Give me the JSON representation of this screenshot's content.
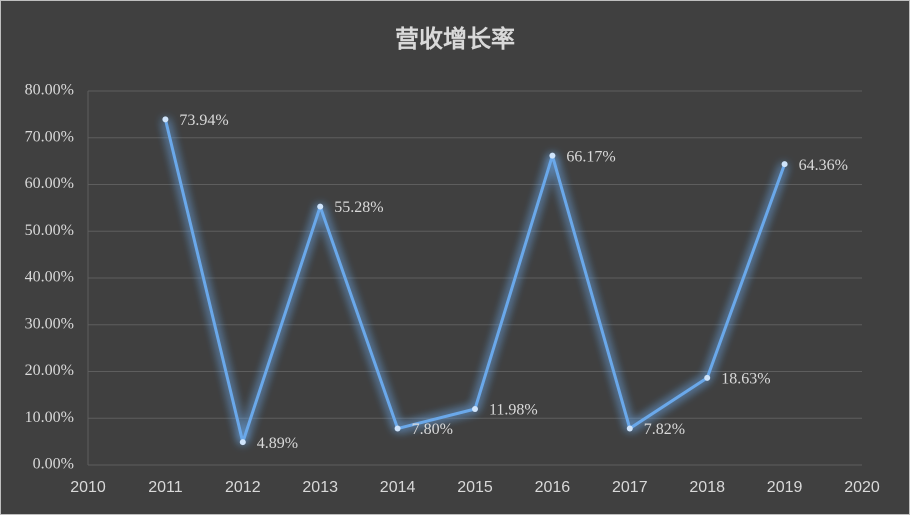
{
  "chart_data": {
    "type": "line",
    "title": "营收增长率",
    "x": [
      2011,
      2012,
      2013,
      2014,
      2015,
      2016,
      2017,
      2018,
      2019
    ],
    "series": [
      {
        "color": "#6aa8ea",
        "values": [
          73.94,
          4.89,
          55.28,
          7.8,
          11.98,
          66.17,
          7.82,
          18.63,
          64.36
        ],
        "value_labels": [
          "73.94%",
          "4.89%",
          "55.28%",
          "7.80%",
          "11.98%",
          "66.17%",
          "7.82%",
          "18.63%",
          "64.36%"
        ]
      }
    ],
    "xlim": [
      2010,
      2020
    ],
    "xticks": [
      2010,
      2011,
      2012,
      2013,
      2014,
      2015,
      2016,
      2017,
      2018,
      2019,
      2020
    ],
    "ylim": [
      0,
      80
    ],
    "yticks": [
      {
        "value": 0,
        "label": "0.00%"
      },
      {
        "value": 10,
        "label": "10.00%"
      },
      {
        "value": 20,
        "label": "20.00%"
      },
      {
        "value": 30,
        "label": "30.00%"
      },
      {
        "value": 40,
        "label": "40.00%"
      },
      {
        "value": 50,
        "label": "50.00%"
      },
      {
        "value": 60,
        "label": "60.00%"
      },
      {
        "value": 70,
        "label": "70.00%"
      },
      {
        "value": 80,
        "label": "80.00%"
      }
    ],
    "grid": true
  }
}
